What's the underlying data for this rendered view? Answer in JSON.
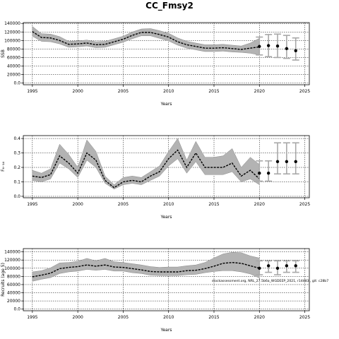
{
  "figure": {
    "title": "CC_Fmsy2",
    "watermark": "stockassessment.org, NRL_27.5b6a_WGDEEP_2021, r14483 , git: c28b7"
  },
  "chart_data": [
    {
      "type": "line",
      "ylabel": "SSB",
      "xlabel": "Years",
      "xlim": [
        1994,
        2025.5
      ],
      "ylim": [
        -4000,
        142000
      ],
      "xticks": [
        1995,
        2000,
        2005,
        2010,
        2015,
        2020,
        2025
      ],
      "yticks": [
        0,
        20000,
        40000,
        60000,
        80000,
        100000,
        120000,
        140000
      ],
      "series": [
        {
          "role": "estimate",
          "x": [
            1995,
            1996,
            1997,
            1998,
            1999,
            2000,
            2001,
            2002,
            2003,
            2004,
            2005,
            2006,
            2007,
            2008,
            2009,
            2010,
            2011,
            2012,
            2013,
            2014,
            2015,
            2016,
            2017,
            2018,
            2019,
            2020
          ],
          "values": [
            121000,
            107000,
            106000,
            100000,
            91000,
            92000,
            94000,
            90000,
            91000,
            97000,
            103000,
            112000,
            119000,
            119000,
            114000,
            108000,
            97000,
            90000,
            86000,
            82000,
            82000,
            83000,
            81000,
            79000,
            82000,
            85000
          ],
          "lower": [
            110000,
            98000,
            97000,
            92000,
            84000,
            85000,
            87000,
            83000,
            84000,
            90000,
            96000,
            104000,
            111000,
            111000,
            105000,
            99000,
            89000,
            82000,
            78000,
            74000,
            74000,
            75000,
            73000,
            72000,
            70000,
            66000
          ],
          "upper": [
            133000,
            116000,
            115000,
            109000,
            98000,
            99000,
            101000,
            97000,
            98000,
            104000,
            110000,
            120000,
            127000,
            128000,
            123000,
            117000,
            106000,
            98000,
            94000,
            90000,
            90000,
            91000,
            89000,
            87000,
            94000,
            105000
          ]
        },
        {
          "role": "forecast",
          "x": [
            2020,
            2021,
            2022,
            2023,
            2024
          ],
          "values": [
            86000,
            88000,
            87000,
            81000,
            76000
          ],
          "lower": [
            66000,
            62000,
            60000,
            58000,
            54000
          ],
          "upper": [
            108000,
            114000,
            115000,
            112000,
            106000
          ]
        }
      ]
    },
    {
      "type": "line",
      "ylabel": "F₆₋₁₄",
      "xlabel": "Years",
      "xlim": [
        1994,
        2025.5
      ],
      "ylim": [
        -0.01,
        0.42
      ],
      "xticks": [
        1995,
        2000,
        2005,
        2010,
        2015,
        2020,
        2025
      ],
      "yticks": [
        0.0,
        0.1,
        0.2,
        0.3,
        0.4
      ],
      "series": [
        {
          "role": "estimate",
          "x": [
            1995,
            1996,
            1997,
            1998,
            1999,
            2000,
            2001,
            2002,
            2003,
            2004,
            2005,
            2006,
            2007,
            2008,
            2009,
            2010,
            2011,
            2012,
            2013,
            2014,
            2015,
            2016,
            2017,
            2018,
            2019,
            2020
          ],
          "values": [
            0.14,
            0.13,
            0.15,
            0.28,
            0.23,
            0.16,
            0.3,
            0.25,
            0.11,
            0.06,
            0.1,
            0.11,
            0.1,
            0.14,
            0.17,
            0.26,
            0.32,
            0.2,
            0.3,
            0.2,
            0.2,
            0.2,
            0.23,
            0.14,
            0.18,
            0.12
          ],
          "lower": [
            0.11,
            0.1,
            0.12,
            0.23,
            0.19,
            0.13,
            0.25,
            0.2,
            0.09,
            0.05,
            0.08,
            0.09,
            0.08,
            0.11,
            0.14,
            0.21,
            0.26,
            0.16,
            0.24,
            0.15,
            0.15,
            0.15,
            0.17,
            0.1,
            0.12,
            0.08
          ],
          "upper": [
            0.18,
            0.16,
            0.19,
            0.36,
            0.29,
            0.2,
            0.39,
            0.31,
            0.14,
            0.08,
            0.13,
            0.14,
            0.13,
            0.17,
            0.21,
            0.31,
            0.4,
            0.25,
            0.38,
            0.27,
            0.27,
            0.28,
            0.33,
            0.2,
            0.27,
            0.22
          ]
        },
        {
          "role": "forecast",
          "x": [
            2020,
            2021,
            2022,
            2023,
            2024
          ],
          "values": [
            0.16,
            0.16,
            0.24,
            0.24,
            0.24
          ],
          "lower": [
            0.105,
            0.105,
            0.155,
            0.155,
            0.155
          ],
          "upper": [
            0.245,
            0.245,
            0.37,
            0.37,
            0.37
          ]
        }
      ]
    },
    {
      "type": "line",
      "ylabel": "Recruits (age 5)",
      "xlabel": "Years",
      "xlim": [
        1994,
        2025.5
      ],
      "ylim": [
        -4000,
        148000
      ],
      "xticks": [
        1995,
        2000,
        2005,
        2010,
        2015,
        2020,
        2025
      ],
      "yticks": [
        0,
        20000,
        40000,
        60000,
        80000,
        100000,
        120000,
        140000
      ],
      "series": [
        {
          "role": "estimate",
          "x": [
            1995,
            1996,
            1997,
            1998,
            1999,
            2000,
            2001,
            2002,
            2003,
            2004,
            2005,
            2006,
            2007,
            2008,
            2009,
            2010,
            2011,
            2012,
            2013,
            2014,
            2015,
            2016,
            2017,
            2018,
            2019,
            2020
          ],
          "values": [
            79000,
            83000,
            88000,
            99000,
            102000,
            104000,
            108000,
            105000,
            108000,
            103000,
            102000,
            99000,
            96000,
            92000,
            91000,
            91000,
            91000,
            94000,
            95000,
            99000,
            105000,
            112000,
            114000,
            112000,
            106000,
            100000
          ],
          "lower": [
            68000,
            73000,
            77000,
            87000,
            91000,
            93000,
            97000,
            95000,
            97000,
            93000,
            93000,
            89000,
            87000,
            83000,
            82000,
            82000,
            82000,
            84000,
            85000,
            89000,
            92000,
            94000,
            94000,
            91000,
            86000,
            76000
          ],
          "upper": [
            91000,
            94000,
            101000,
            113000,
            114000,
            117000,
            124000,
            118000,
            124000,
            116000,
            114000,
            111000,
            108000,
            104000,
            102000,
            103000,
            103000,
            106000,
            108000,
            114000,
            125000,
            135000,
            139000,
            138000,
            130000,
            125000
          ]
        },
        {
          "role": "forecast",
          "x": [
            2020,
            2021,
            2022,
            2023,
            2024
          ],
          "values": [
            100000,
            106000,
            100000,
            106000,
            106000
          ],
          "lower": [
            84000,
            90000,
            84000,
            90000,
            90000
          ],
          "upper": [
            118000,
            118000,
            118000,
            118000,
            118000
          ]
        }
      ]
    }
  ]
}
